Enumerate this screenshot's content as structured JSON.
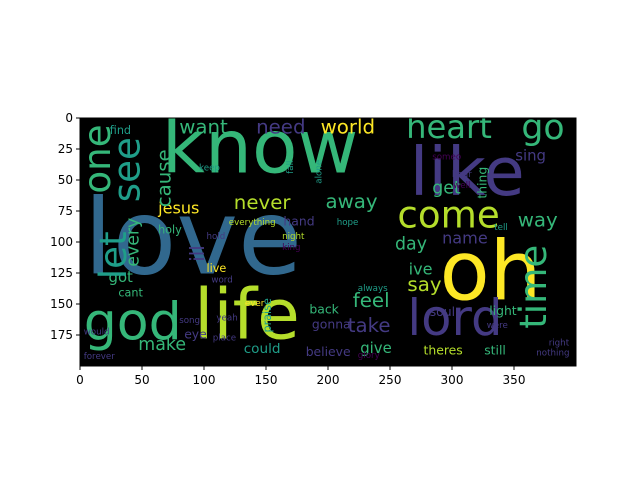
{
  "chart_data": {
    "type": "wordcloud",
    "title": "",
    "xlabel": "",
    "ylabel": "",
    "xlim": [
      0,
      400
    ],
    "ylim": [
      200,
      0
    ],
    "background": "#000000",
    "x_ticks": [
      0,
      50,
      100,
      150,
      200,
      250,
      300,
      350
    ],
    "y_ticks": [
      0,
      25,
      50,
      75,
      100,
      125,
      150,
      175
    ],
    "palette": {
      "yellow": "#fde725",
      "lime": "#b5de2b",
      "green": "#35b779",
      "teal": "#1f9e89",
      "blue": "#31688e",
      "indigo": "#443a83",
      "purple": "#440154"
    },
    "words": [
      {
        "text": "love",
        "x": 3,
        "y": 60,
        "fontsize": 84,
        "color": "blue",
        "vertical": false
      },
      {
        "text": "know",
        "x": 66,
        "y": -3,
        "fontsize": 60,
        "color": "green",
        "vertical": false
      },
      {
        "text": "oh",
        "x": 290,
        "y": 95,
        "fontsize": 66,
        "color": "yellow",
        "vertical": false
      },
      {
        "text": "like",
        "x": 266,
        "y": 20,
        "fontsize": 54,
        "color": "indigo",
        "vertical": false
      },
      {
        "text": "life",
        "x": 92,
        "y": 134,
        "fontsize": 56,
        "color": "lime",
        "vertical": false
      },
      {
        "text": "lord",
        "x": 264,
        "y": 144,
        "fontsize": 40,
        "color": "indigo",
        "vertical": false
      },
      {
        "text": "god",
        "x": 3,
        "y": 146,
        "fontsize": 42,
        "color": "green",
        "vertical": false
      },
      {
        "text": "heart",
        "x": 263,
        "y": -4,
        "fontsize": 26,
        "color": "green",
        "vertical": false
      },
      {
        "text": "go",
        "x": 356,
        "y": -5,
        "fontsize": 28,
        "color": "green",
        "vertical": false
      },
      {
        "text": "come",
        "x": 256,
        "y": 65,
        "fontsize": 30,
        "color": "lime",
        "vertical": false
      },
      {
        "text": "world",
        "x": 194,
        "y": 0,
        "fontsize": 16,
        "color": "yellow",
        "vertical": false
      },
      {
        "text": "need",
        "x": 142,
        "y": 0,
        "fontsize": 16,
        "color": "indigo",
        "vertical": false
      },
      {
        "text": "want",
        "x": 80,
        "y": 0,
        "fontsize": 16,
        "color": "green",
        "vertical": false
      },
      {
        "text": "never",
        "x": 124,
        "y": 61,
        "fontsize": 16,
        "color": "lime",
        "vertical": false
      },
      {
        "text": "jesus",
        "x": 63,
        "y": 67,
        "fontsize": 13,
        "color": "yellow",
        "vertical": false
      },
      {
        "text": "away",
        "x": 198,
        "y": 60,
        "fontsize": 16,
        "color": "green",
        "vertical": false
      },
      {
        "text": "way",
        "x": 353,
        "y": 75,
        "fontsize": 16,
        "color": "green",
        "vertical": false
      },
      {
        "text": "day",
        "x": 254,
        "y": 95,
        "fontsize": 14,
        "color": "green",
        "vertical": false
      },
      {
        "text": "name",
        "x": 292,
        "y": 91,
        "fontsize": 13,
        "color": "indigo",
        "vertical": false
      },
      {
        "text": "ive",
        "x": 265,
        "y": 116,
        "fontsize": 13,
        "color": "green",
        "vertical": false
      },
      {
        "text": "say",
        "x": 264,
        "y": 127,
        "fontsize": 16,
        "color": "lime",
        "vertical": false
      },
      {
        "text": "feel",
        "x": 220,
        "y": 140,
        "fontsize": 16,
        "color": "green",
        "vertical": false
      },
      {
        "text": "take",
        "x": 216,
        "y": 160,
        "fontsize": 16,
        "color": "indigo",
        "vertical": false
      },
      {
        "text": "give",
        "x": 226,
        "y": 180,
        "fontsize": 12,
        "color": "green",
        "vertical": false
      },
      {
        "text": "make",
        "x": 47,
        "y": 176,
        "fontsize": 14,
        "color": "green",
        "vertical": false
      },
      {
        "text": "could",
        "x": 132,
        "y": 181,
        "fontsize": 11,
        "color": "teal",
        "vertical": false
      },
      {
        "text": "believe",
        "x": 182,
        "y": 184,
        "fontsize": 10,
        "color": "indigo",
        "vertical": false
      },
      {
        "text": "theres",
        "x": 277,
        "y": 183,
        "fontsize": 10,
        "color": "lime",
        "vertical": false
      },
      {
        "text": "still",
        "x": 326,
        "y": 183,
        "fontsize": 10,
        "color": "green",
        "vertical": false
      },
      {
        "text": "nothing",
        "x": 368,
        "y": 186,
        "fontsize": 7,
        "color": "indigo",
        "vertical": false
      },
      {
        "text": "forever",
        "x": 3,
        "y": 189,
        "fontsize": 7,
        "color": "indigo",
        "vertical": false
      },
      {
        "text": "glory",
        "x": 224,
        "y": 188,
        "fontsize": 7,
        "color": "purple",
        "vertical": false
      },
      {
        "text": "right",
        "x": 378,
        "y": 178,
        "fontsize": 7,
        "color": "indigo",
        "vertical": false
      },
      {
        "text": "light",
        "x": 330,
        "y": 151,
        "fontsize": 10,
        "color": "green",
        "vertical": false
      },
      {
        "text": "soul",
        "x": 282,
        "y": 152,
        "fontsize": 10,
        "color": "indigo",
        "vertical": false
      },
      {
        "text": "back",
        "x": 185,
        "y": 150,
        "fontsize": 10,
        "color": "green",
        "vertical": false
      },
      {
        "text": "gonna",
        "x": 187,
        "y": 162,
        "fontsize": 10,
        "color": "indigo",
        "vertical": false
      },
      {
        "text": "got",
        "x": 23,
        "y": 123,
        "fontsize": 12,
        "color": "green",
        "vertical": false
      },
      {
        "text": "cant",
        "x": 31,
        "y": 137,
        "fontsize": 9,
        "color": "green",
        "vertical": false
      },
      {
        "text": "would",
        "x": 3,
        "y": 169,
        "fontsize": 7,
        "color": "indigo",
        "vertical": false
      },
      {
        "text": "get",
        "x": 284,
        "y": 50,
        "fontsize": 14,
        "color": "green",
        "vertical": false
      },
      {
        "text": "sing",
        "x": 351,
        "y": 25,
        "fontsize": 12,
        "color": "indigo",
        "vertical": false
      },
      {
        "text": "find",
        "x": 24,
        "y": 6,
        "fontsize": 9,
        "color": "teal",
        "vertical": false
      },
      {
        "text": "keep",
        "x": 96,
        "y": 37,
        "fontsize": 7,
        "color": "teal",
        "vertical": false
      },
      {
        "text": "holy",
        "x": 63,
        "y": 86,
        "fontsize": 9,
        "color": "green",
        "vertical": false
      },
      {
        "text": "hold",
        "x": 102,
        "y": 92,
        "fontsize": 7,
        "color": "indigo",
        "vertical": false
      },
      {
        "text": "live",
        "x": 102,
        "y": 117,
        "fontsize": 9,
        "color": "yellow",
        "vertical": false
      },
      {
        "text": "word",
        "x": 106,
        "y": 127,
        "fontsize": 7,
        "color": "indigo",
        "vertical": false
      },
      {
        "text": "ever",
        "x": 133,
        "y": 146,
        "fontsize": 7,
        "color": "yellow",
        "vertical": false
      },
      {
        "text": "yeah",
        "x": 110,
        "y": 158,
        "fontsize": 7,
        "color": "indigo",
        "vertical": false
      },
      {
        "text": "song",
        "x": 80,
        "y": 160,
        "fontsize": 7,
        "color": "indigo",
        "vertical": false
      },
      {
        "text": "eye",
        "x": 84,
        "y": 170,
        "fontsize": 10,
        "color": "indigo",
        "vertical": false
      },
      {
        "text": "place",
        "x": 107,
        "y": 174,
        "fontsize": 7,
        "color": "indigo",
        "vertical": false
      },
      {
        "text": "hand",
        "x": 164,
        "y": 79,
        "fontsize": 10,
        "color": "indigo",
        "vertical": false
      },
      {
        "text": "everything",
        "x": 120,
        "y": 81,
        "fontsize": 7,
        "color": "lime",
        "vertical": false
      },
      {
        "text": "night",
        "x": 163,
        "y": 92,
        "fontsize": 7,
        "color": "lime",
        "vertical": false
      },
      {
        "text": "king",
        "x": 163,
        "y": 101,
        "fontsize": 7,
        "color": "purple",
        "vertical": false
      },
      {
        "text": "hope",
        "x": 207,
        "y": 81,
        "fontsize": 7,
        "color": "teal",
        "vertical": false
      },
      {
        "text": "always",
        "x": 224,
        "y": 134,
        "fontsize": 7,
        "color": "teal",
        "vertical": false
      },
      {
        "text": "tell",
        "x": 334,
        "y": 85,
        "fontsize": 7,
        "color": "teal",
        "vertical": false
      },
      {
        "text": "hear",
        "x": 300,
        "y": 42,
        "fontsize": 7,
        "color": "indigo",
        "vertical": false
      },
      {
        "text": "were",
        "x": 328,
        "y": 164,
        "fontsize": 7,
        "color": "indigo",
        "vertical": false
      },
      {
        "text": "someo",
        "x": 284,
        "y": 28,
        "fontsize": 7,
        "color": "purple",
        "vertical": false
      },
      {
        "text": "well",
        "x": 301,
        "y": 51,
        "fontsize": 7,
        "color": "purple",
        "vertical": false
      },
      {
        "text": "one",
        "x": 0,
        "y": 61,
        "fontsize": 30,
        "color": "green",
        "vertical": true
      },
      {
        "text": "let",
        "x": 13,
        "y": 130,
        "fontsize": 30,
        "color": "teal",
        "vertical": true
      },
      {
        "text": "see",
        "x": 24,
        "y": 68,
        "fontsize": 30,
        "color": "teal",
        "vertical": true
      },
      {
        "text": "cause",
        "x": 60,
        "y": 72,
        "fontsize": 16,
        "color": "green",
        "vertical": true
      },
      {
        "text": "every",
        "x": 36,
        "y": 120,
        "fontsize": 14,
        "color": "green",
        "vertical": true
      },
      {
        "text": "ill",
        "x": 87,
        "y": 116,
        "fontsize": 16,
        "color": "indigo",
        "vertical": true
      },
      {
        "text": "praise",
        "x": 147,
        "y": 173,
        "fontsize": 9,
        "color": "teal",
        "vertical": true
      },
      {
        "text": "fall",
        "x": 166,
        "y": 45,
        "fontsize": 7,
        "color": "teal",
        "vertical": true
      },
      {
        "text": "alone",
        "x": 189,
        "y": 53,
        "fontsize": 7,
        "color": "teal",
        "vertical": true
      },
      {
        "text": "thing",
        "x": 320,
        "y": 65,
        "fontsize": 10,
        "color": "green",
        "vertical": true
      },
      {
        "text": "time",
        "x": 352,
        "y": 170,
        "fontsize": 30,
        "color": "green",
        "vertical": true
      },
      {
        "text": "theres2",
        "x": 0,
        "y": 0,
        "fontsize": 0,
        "color": "teal",
        "vertical": false,
        "skip": true
      }
    ]
  }
}
